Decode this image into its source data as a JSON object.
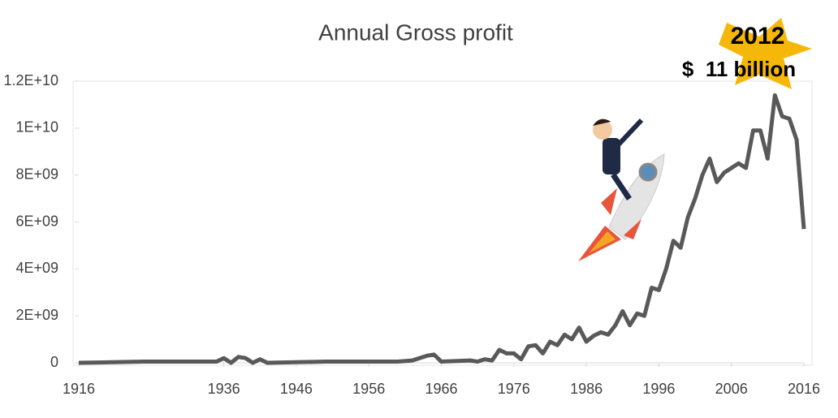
{
  "chart_data": {
    "type": "line",
    "title": "Annual Gross profit",
    "annotations": [
      "2012",
      "$  11 billion"
    ],
    "x": [
      1916,
      1925,
      1930,
      1935,
      1936,
      1937,
      1938,
      1939,
      1940,
      1941,
      1942,
      1950,
      1960,
      1962,
      1964,
      1965,
      1966,
      1970,
      1971,
      1972,
      1973,
      1974,
      1975,
      1976,
      1977,
      1978,
      1979,
      1980,
      1981,
      1982,
      1983,
      1984,
      1985,
      1986,
      1987,
      1988,
      1989,
      1990,
      1991,
      1992,
      1993,
      1994,
      1995,
      1996,
      1997,
      1998,
      1999,
      2000,
      2001,
      2002,
      2003,
      2004,
      2005,
      2006,
      2007,
      2008,
      2009,
      2010,
      2011,
      2012,
      2013,
      2014,
      2015,
      2016
    ],
    "series": [
      {
        "name": "Annual Gross profit",
        "color": "#595959",
        "values": [
          0,
          50000000,
          50000000,
          50000000,
          200000000,
          0,
          250000000,
          200000000,
          0,
          150000000,
          0,
          50000000,
          50000000,
          100000000,
          300000000,
          350000000,
          50000000,
          100000000,
          50000000,
          150000000,
          100000000,
          550000000,
          400000000,
          400000000,
          150000000,
          700000000,
          750000000,
          400000000,
          900000000,
          750000000,
          1200000000,
          1000000000,
          1500000000,
          900000000,
          1150000000,
          1300000000,
          1200000000,
          1600000000,
          2200000000,
          1600000000,
          2100000000,
          2000000000,
          3200000000,
          3100000000,
          4000000000,
          5200000000,
          4900000000,
          6200000000,
          7000000000,
          8000000000,
          8700000000,
          7700000000,
          8100000000,
          8300000000,
          8500000000,
          8300000000,
          9900000000,
          9900000000,
          8700000000,
          11400000000,
          10500000000,
          10400000000,
          9500000000,
          5700000000
        ]
      }
    ],
    "xlim": [
      1916,
      2016
    ],
    "xticks": [
      1916,
      1936,
      1946,
      1956,
      1966,
      1976,
      1986,
      1996,
      2006,
      2016
    ],
    "ylim": [
      0,
      12000000000
    ],
    "yticks": [
      0,
      {
        "value": 2000000000,
        "label": "2E+09"
      },
      {
        "value": 4000000000,
        "label": "4E+09"
      },
      {
        "value": 6000000000,
        "label": "6E+09"
      },
      {
        "value": 8000000000,
        "label": "8E+09"
      },
      {
        "value": 10000000000,
        "label": "1E+10"
      },
      {
        "value": 12000000000,
        "label": "1.2E+10"
      }
    ],
    "grid": false
  }
}
